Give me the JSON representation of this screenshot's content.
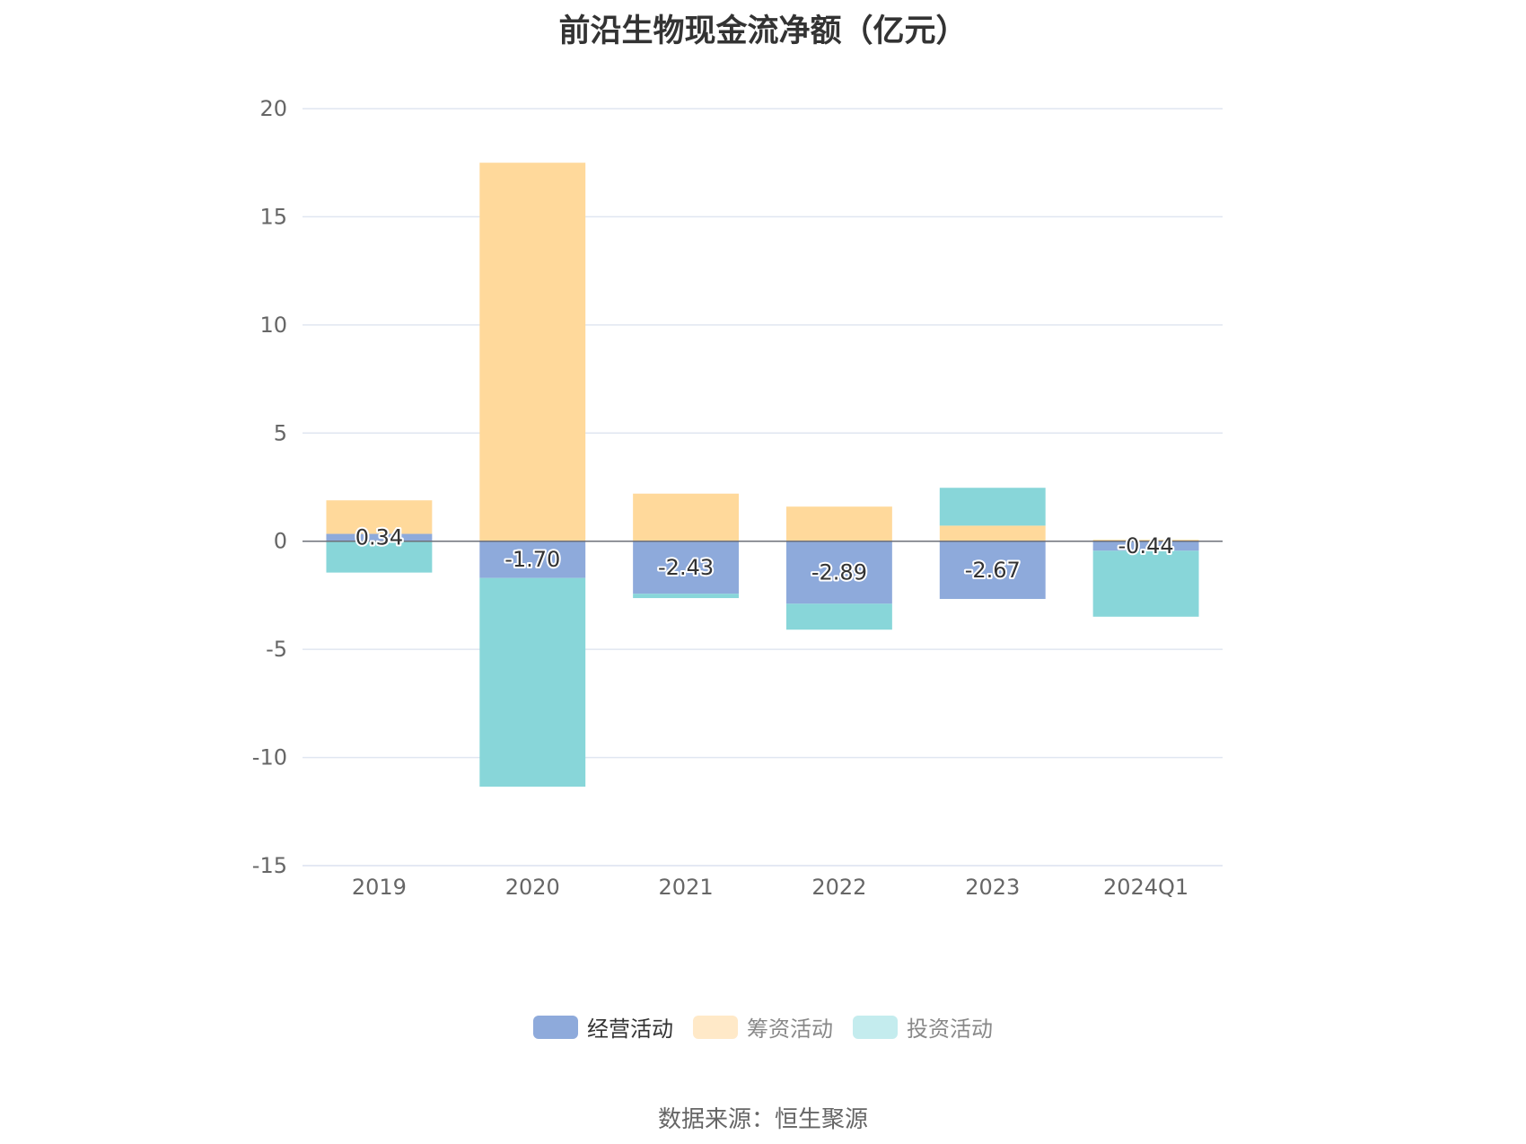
{
  "chart_data": {
    "type": "bar",
    "stacked": true,
    "title": "前沿生物现金流净额（亿元）",
    "categories": [
      "2019",
      "2020",
      "2021",
      "2022",
      "2023",
      "2024Q1"
    ],
    "series": [
      {
        "name": "经营活动",
        "color": "#8eaadb",
        "values": [
          0.34,
          -1.7,
          -2.43,
          -2.89,
          -2.67,
          -0.44
        ]
      },
      {
        "name": "筹资活动",
        "color": "#ffd99b",
        "values": [
          1.55,
          17.5,
          2.2,
          1.6,
          0.72,
          0.07
        ]
      },
      {
        "name": "投资活动",
        "color": "#88d6d9",
        "values": [
          -1.45,
          -9.65,
          -0.2,
          -1.2,
          1.75,
          -3.05
        ]
      }
    ],
    "data_labels": [
      "0.34",
      "-1.70",
      "-2.43",
      "-2.89",
      "-2.67",
      "-0.44"
    ],
    "yticks": [
      "20",
      "15",
      "10",
      "5",
      "0",
      "-5",
      "-10",
      "-15"
    ],
    "ylim": [
      -15,
      20
    ],
    "grid": true,
    "legend_position": "bottom"
  },
  "legend_colors": [
    "#8eaadb",
    "#ffe9c8",
    "#c4ecee"
  ],
  "source": "数据来源：恒生聚源"
}
